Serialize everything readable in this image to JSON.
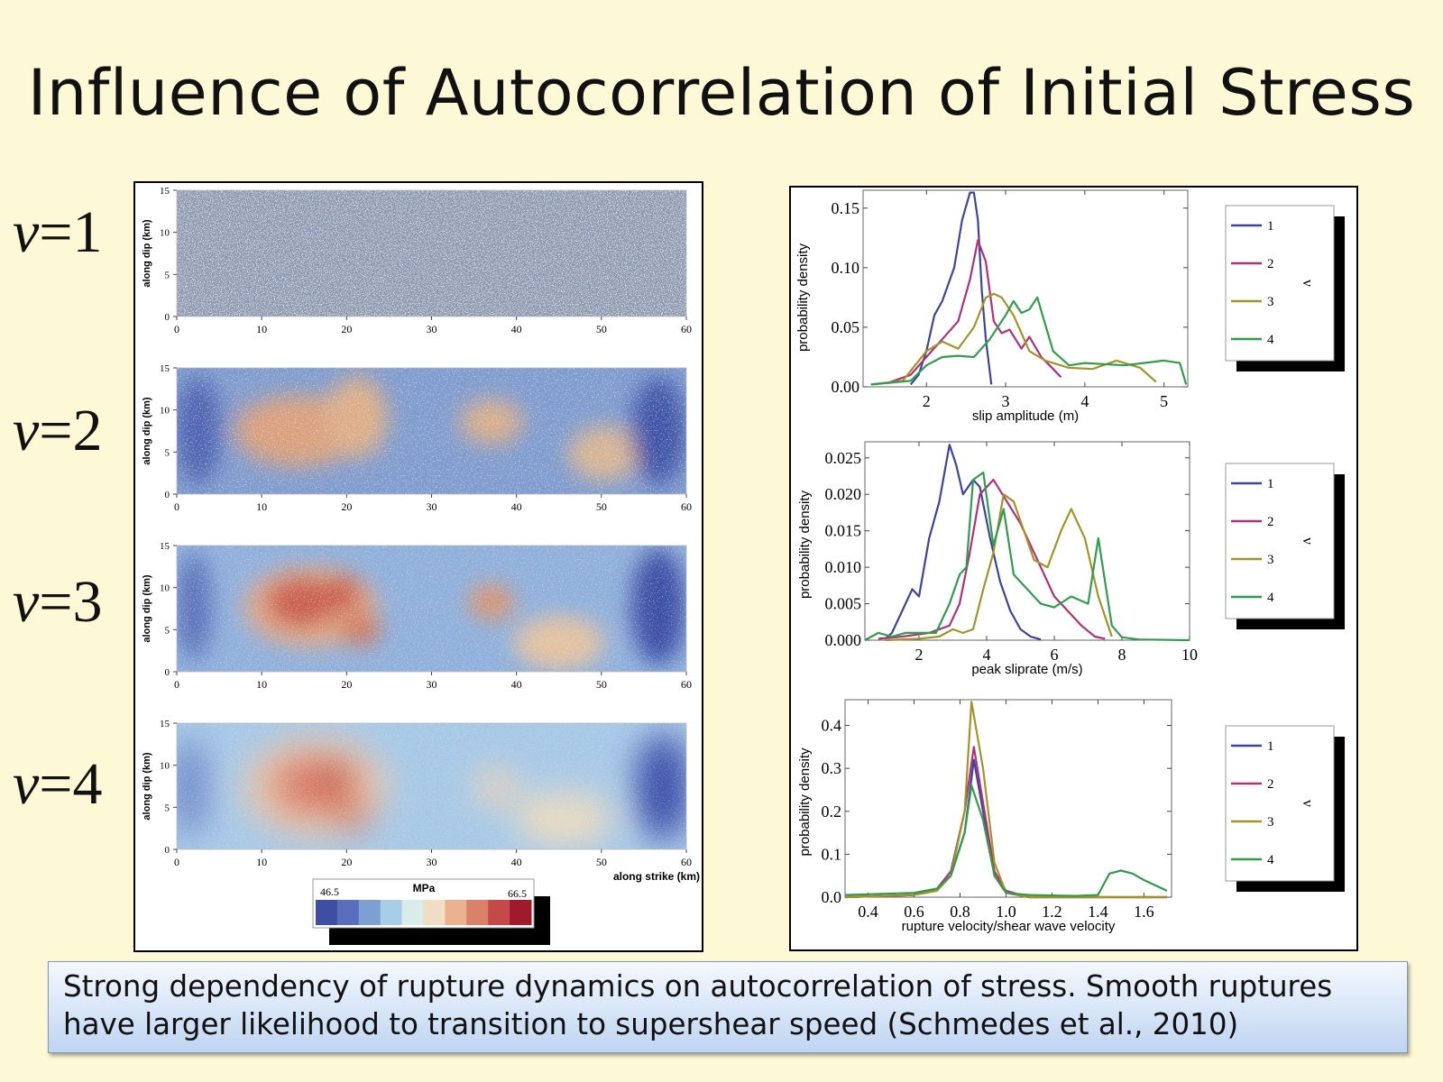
{
  "title": "Influence of Autocorrelation of Initial Stress",
  "v_labels": [
    {
      "var": "v",
      "eq": "=1"
    },
    {
      "var": "v",
      "eq": "=2"
    },
    {
      "var": "v",
      "eq": "=3"
    },
    {
      "var": "v",
      "eq": "=4"
    }
  ],
  "caption": {
    "line1": "Strong dependency of rupture dynamics on autocorrelation of stress. Smooth ruptures",
    "line2": "have larger likelihood to transition to supershear speed (Schmedes et al., 2010)"
  },
  "colors": {
    "series": [
      "#3c44a0",
      "#b0307a",
      "#a39427",
      "#2f9e4c"
    ],
    "colormap": [
      "#3f4da3",
      "#5a6fbc",
      "#7e9fd2",
      "#a8cde6",
      "#d9ecea",
      "#f0ddc4",
      "#eab28f",
      "#d9816b",
      "#c44a4a",
      "#a11a2b"
    ]
  },
  "stress_panels": {
    "ylabel": "along dip (km)",
    "xlabel": "along strike (km)",
    "x_ticks": [
      "0",
      "10",
      "20",
      "30",
      "40",
      "50",
      "60"
    ],
    "y_ticks": [
      "0",
      "5",
      "10",
      "15"
    ],
    "colorbar": {
      "title": "MPa",
      "min": "46.5",
      "max": "66.5"
    }
  },
  "chart_data": [
    {
      "type": "line",
      "title": "",
      "xlabel": "slip amplitude (m)",
      "ylabel": "probability density",
      "xlim": [
        1.2,
        5.3
      ],
      "ylim": [
        0,
        0.165
      ],
      "x_ticks": [
        "2",
        "3",
        "4",
        "5"
      ],
      "y_ticks": [
        "0.00",
        "0.05",
        "0.10",
        "0.15"
      ],
      "legend_title": "ν",
      "legend": [
        "1",
        "2",
        "3",
        "4"
      ],
      "series": [
        {
          "name": "1",
          "x": [
            1.8,
            1.9,
            2.0,
            2.1,
            2.2,
            2.35,
            2.45,
            2.55,
            2.6,
            2.65,
            2.7,
            2.75,
            2.82
          ],
          "y": [
            0.002,
            0.01,
            0.03,
            0.06,
            0.072,
            0.1,
            0.14,
            0.163,
            0.163,
            0.14,
            0.08,
            0.04,
            0.002
          ]
        },
        {
          "name": "2",
          "x": [
            1.5,
            1.8,
            2.0,
            2.2,
            2.4,
            2.55,
            2.65,
            2.75,
            2.85,
            2.95,
            3.05,
            3.2,
            3.3,
            3.45,
            3.6,
            3.7
          ],
          "y": [
            0.003,
            0.01,
            0.025,
            0.04,
            0.055,
            0.09,
            0.123,
            0.105,
            0.055,
            0.045,
            0.048,
            0.032,
            0.042,
            0.025,
            0.015,
            0.008
          ]
        },
        {
          "name": "3",
          "x": [
            1.3,
            1.7,
            2.0,
            2.2,
            2.4,
            2.6,
            2.75,
            2.85,
            2.95,
            3.1,
            3.3,
            3.5,
            3.8,
            4.1,
            4.4,
            4.7,
            4.9
          ],
          "y": [
            0.002,
            0.005,
            0.03,
            0.038,
            0.032,
            0.05,
            0.075,
            0.078,
            0.075,
            0.06,
            0.03,
            0.022,
            0.016,
            0.015,
            0.022,
            0.016,
            0.004
          ]
        },
        {
          "name": "4",
          "x": [
            1.3,
            1.8,
            2.0,
            2.2,
            2.4,
            2.6,
            2.8,
            3.0,
            3.1,
            3.2,
            3.3,
            3.4,
            3.6,
            3.8,
            4.0,
            4.5,
            5.0,
            5.2,
            5.28
          ],
          "y": [
            0.002,
            0.005,
            0.018,
            0.025,
            0.026,
            0.025,
            0.04,
            0.06,
            0.072,
            0.062,
            0.065,
            0.075,
            0.03,
            0.018,
            0.02,
            0.018,
            0.022,
            0.02,
            0.002
          ]
        }
      ]
    },
    {
      "type": "line",
      "title": "",
      "xlabel": "peak sliprate (m/s)",
      "ylabel": "probability density",
      "xlim": [
        0.4,
        10.0
      ],
      "ylim": [
        0,
        0.0272
      ],
      "x_ticks": [
        "2",
        "4",
        "6",
        "8",
        "10"
      ],
      "y_ticks": [
        "0.000",
        "0.005",
        "0.010",
        "0.015",
        "0.020",
        "0.025"
      ],
      "legend_title": "ν",
      "legend": [
        "1",
        "2",
        "3",
        "4"
      ],
      "series": [
        {
          "name": "1",
          "x": [
            1.0,
            1.2,
            1.5,
            1.8,
            2.0,
            2.3,
            2.6,
            2.9,
            3.1,
            3.3,
            3.6,
            3.8,
            4.1,
            4.4,
            4.7,
            5.0,
            5.3,
            5.6
          ],
          "y": [
            0.0002,
            0.001,
            0.004,
            0.007,
            0.006,
            0.014,
            0.019,
            0.0268,
            0.024,
            0.02,
            0.022,
            0.021,
            0.014,
            0.008,
            0.004,
            0.0015,
            0.0005,
            0.0001
          ]
        },
        {
          "name": "2",
          "x": [
            0.8,
            1.5,
            2.3,
            2.9,
            3.2,
            3.5,
            3.8,
            4.2,
            4.6,
            5.0,
            5.5,
            6.0,
            6.4,
            6.8,
            7.2,
            7.5
          ],
          "y": [
            0.0002,
            0.0005,
            0.001,
            0.002,
            0.005,
            0.012,
            0.02,
            0.022,
            0.019,
            0.016,
            0.011,
            0.006,
            0.004,
            0.002,
            0.0005,
            0.0002
          ]
        },
        {
          "name": "3",
          "x": [
            1.0,
            2.0,
            2.6,
            3.0,
            3.3,
            3.6,
            3.9,
            4.2,
            4.5,
            4.8,
            5.1,
            5.4,
            5.8,
            6.2,
            6.5,
            6.9,
            7.3,
            7.7
          ],
          "y": [
            0.0,
            0.0002,
            0.0005,
            0.0015,
            0.001,
            0.0015,
            0.007,
            0.012,
            0.02,
            0.019,
            0.015,
            0.011,
            0.01,
            0.015,
            0.018,
            0.014,
            0.006,
            0.0005
          ]
        },
        {
          "name": "4",
          "x": [
            0.4,
            0.8,
            1.2,
            1.6,
            2.0,
            2.5,
            2.9,
            3.2,
            3.4,
            3.6,
            3.9,
            4.2,
            4.5,
            4.8,
            5.2,
            5.6,
            6.0,
            6.5,
            7.0,
            7.3,
            7.5,
            7.7,
            8.0,
            8.5,
            10.0
          ],
          "y": [
            0.0,
            0.001,
            0.0005,
            0.001,
            0.001,
            0.001,
            0.005,
            0.009,
            0.01,
            0.022,
            0.023,
            0.013,
            0.018,
            0.009,
            0.007,
            0.005,
            0.0045,
            0.006,
            0.005,
            0.014,
            0.008,
            0.002,
            0.0004,
            0.0001,
            0.0
          ]
        }
      ]
    },
    {
      "type": "line",
      "title": "",
      "xlabel": "rupture velocity/shear wave velocity",
      "ylabel": "probability density",
      "xlim": [
        0.3,
        1.72
      ],
      "ylim": [
        0,
        0.46
      ],
      "x_ticks": [
        "0.4",
        "0.6",
        "0.8",
        "1.0",
        "1.2",
        "1.4",
        "1.6"
      ],
      "y_ticks": [
        "0.0",
        "0.1",
        "0.2",
        "0.3",
        "0.4"
      ],
      "legend_title": "ν",
      "legend": [
        "1",
        "2",
        "3",
        "4"
      ],
      "series": [
        {
          "name": "1",
          "x": [
            0.3,
            0.6,
            0.7,
            0.76,
            0.82,
            0.86,
            0.9,
            0.95,
            1.0,
            1.1,
            1.7
          ],
          "y": [
            0.0,
            0.005,
            0.02,
            0.05,
            0.15,
            0.32,
            0.2,
            0.05,
            0.01,
            0.0,
            0.0
          ]
        },
        {
          "name": "2",
          "x": [
            0.3,
            0.6,
            0.7,
            0.76,
            0.82,
            0.86,
            0.9,
            0.95,
            1.0,
            1.1,
            1.7
          ],
          "y": [
            0.0,
            0.005,
            0.02,
            0.06,
            0.2,
            0.35,
            0.22,
            0.06,
            0.015,
            0.0,
            0.0
          ]
        },
        {
          "name": "3",
          "x": [
            0.3,
            0.6,
            0.7,
            0.76,
            0.82,
            0.85,
            0.9,
            0.95,
            1.0,
            1.1,
            1.7
          ],
          "y": [
            0.0,
            0.005,
            0.015,
            0.05,
            0.2,
            0.455,
            0.3,
            0.08,
            0.01,
            0.0,
            0.0
          ]
        },
        {
          "name": "4",
          "x": [
            0.3,
            0.6,
            0.7,
            0.76,
            0.82,
            0.85,
            0.9,
            0.95,
            1.0,
            1.1,
            1.3,
            1.4,
            1.45,
            1.5,
            1.55,
            1.6,
            1.7
          ],
          "y": [
            0.005,
            0.01,
            0.02,
            0.05,
            0.15,
            0.26,
            0.18,
            0.05,
            0.01,
            0.005,
            0.003,
            0.005,
            0.055,
            0.062,
            0.055,
            0.04,
            0.015
          ]
        }
      ]
    }
  ]
}
